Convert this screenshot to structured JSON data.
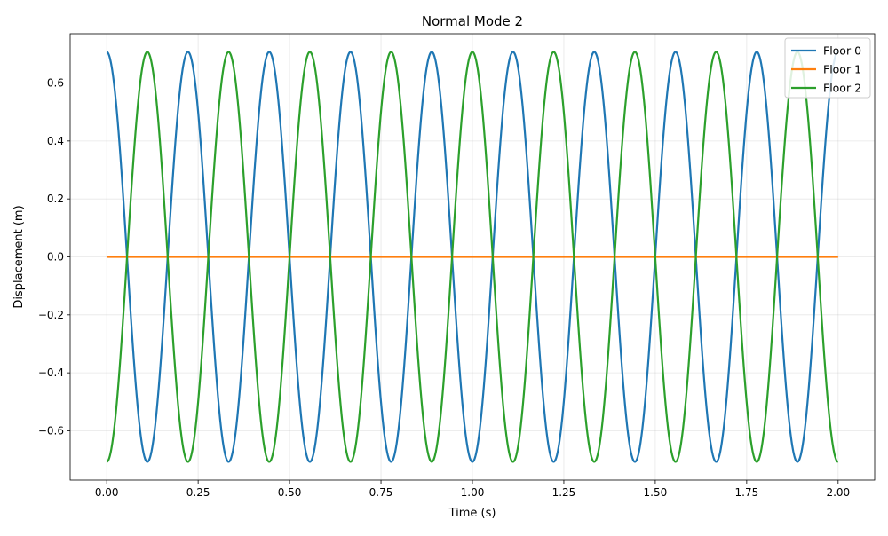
{
  "chart_data": {
    "type": "line",
    "title": "Normal Mode 2",
    "xlabel": "Time (s)",
    "ylabel": "Displacement (m)",
    "xlim": [
      -0.1,
      2.1
    ],
    "ylim": [
      -0.77,
      0.77
    ],
    "x_ticks": [
      0.0,
      0.25,
      0.5,
      0.75,
      1.0,
      1.25,
      1.5,
      1.75,
      2.0
    ],
    "x_tick_labels": [
      "0.00",
      "0.25",
      "0.50",
      "0.75",
      "1.00",
      "1.25",
      "1.50",
      "1.75",
      "2.00"
    ],
    "y_ticks": [
      -0.6,
      -0.4,
      -0.2,
      0.0,
      0.2,
      0.4,
      0.6
    ],
    "y_tick_labels": [
      "−0.6",
      "−0.4",
      "−0.2",
      "0.0",
      "0.2",
      "0.4",
      "0.6"
    ],
    "grid": true,
    "legend_position": "top-right",
    "series": [
      {
        "name": "Floor 0",
        "color": "#1f77b4",
        "amplitude": 0.7071,
        "period": 0.2222,
        "phase": 0.0,
        "x_range": [
          0,
          2
        ]
      },
      {
        "name": "Floor 1",
        "color": "#ff7f0e",
        "amplitude": 0.0,
        "period": 0.2222,
        "phase": 0.0,
        "x_range": [
          0,
          2
        ]
      },
      {
        "name": "Floor 2",
        "color": "#2ca02c",
        "amplitude": -0.7071,
        "period": 0.2222,
        "phase": 0.0,
        "x_range": [
          0,
          2
        ]
      }
    ]
  }
}
